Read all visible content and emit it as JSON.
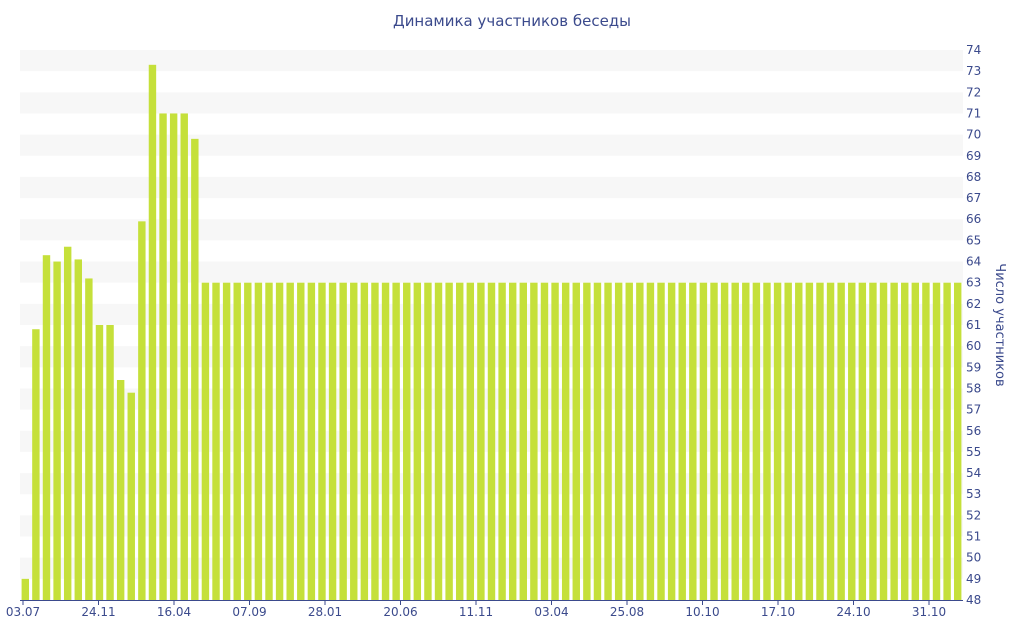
{
  "chart_data": {
    "type": "bar",
    "title": "Динамика участников беседы",
    "ylabel": "Число участников",
    "ylim": [
      48,
      74
    ],
    "y_ticks": [
      48,
      49,
      50,
      51,
      52,
      53,
      54,
      55,
      56,
      57,
      58,
      59,
      60,
      61,
      62,
      63,
      64,
      65,
      66,
      67,
      68,
      69,
      70,
      71,
      72,
      73,
      74
    ],
    "x_tick_labels": [
      "03.07",
      "24.11",
      "16.04",
      "07.09",
      "28.01",
      "20.06",
      "11.11",
      "03.04",
      "25.08",
      "10.10",
      "17.10",
      "24.10",
      "31.10"
    ],
    "grid": "horizontal bands",
    "bar_color": "#c5e03a",
    "values": [
      49,
      60.8,
      64.3,
      64,
      64.7,
      64.1,
      63.2,
      61,
      61,
      58.4,
      57.8,
      65.9,
      73.3,
      71,
      71,
      71,
      69.8,
      63,
      63,
      63,
      63,
      63,
      63,
      63,
      63,
      63,
      63,
      63,
      63,
      63,
      63,
      63,
      63,
      63,
      63,
      63,
      63,
      63,
      63,
      63,
      63,
      63,
      63,
      63,
      63,
      63,
      63,
      63,
      63,
      63,
      63,
      63,
      63,
      63,
      63,
      63,
      63,
      63,
      63,
      63,
      63,
      63,
      63,
      63,
      63,
      63,
      63,
      63,
      63,
      63,
      63,
      63,
      63,
      63,
      63,
      63,
      63,
      63,
      63,
      63,
      63,
      63,
      63,
      63,
      63,
      63,
      63,
      63,
      63
    ]
  },
  "colors": {
    "text": "#3b4a8c",
    "band": "#f7f7f7",
    "bar": "#c5e03a"
  }
}
